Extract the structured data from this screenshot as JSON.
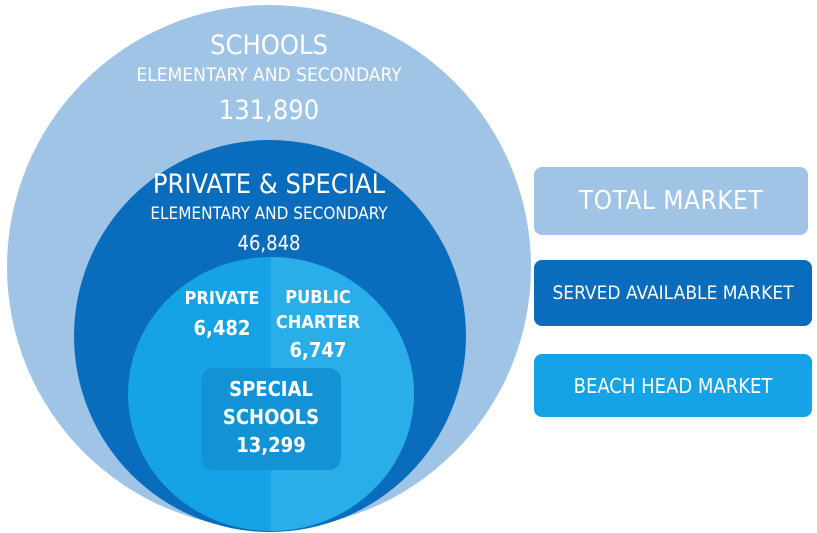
{
  "schools": {
    "title": "SCHOOLS",
    "subtitle": "ELEMENTARY AND SECONDARY",
    "count": "131,890"
  },
  "private_special": {
    "title": "PRIVATE & SPECIAL",
    "subtitle": "ELEMENTARY AND SECONDARY",
    "count": "46,848"
  },
  "inner": {
    "private": {
      "label": "PRIVATE",
      "count": "6,482"
    },
    "public_charter": {
      "label_line1": "PUBLIC",
      "label_line2": "CHARTER",
      "count": "6,747"
    },
    "special_schools": {
      "label_line1": "SPECIAL",
      "label_line2": "SCHOOLS",
      "count": "13,299"
    }
  },
  "legend": {
    "total_market": "TOTAL MARKET",
    "served_available_market": "SERVED AVAILABLE MARKET",
    "beach_head_market": "BEACH HEAD MARKET"
  },
  "colors": {
    "total_market": "#a0c4e6",
    "served_available_market": "#0a6cbd",
    "beach_head_market": "#16a2e6"
  }
}
